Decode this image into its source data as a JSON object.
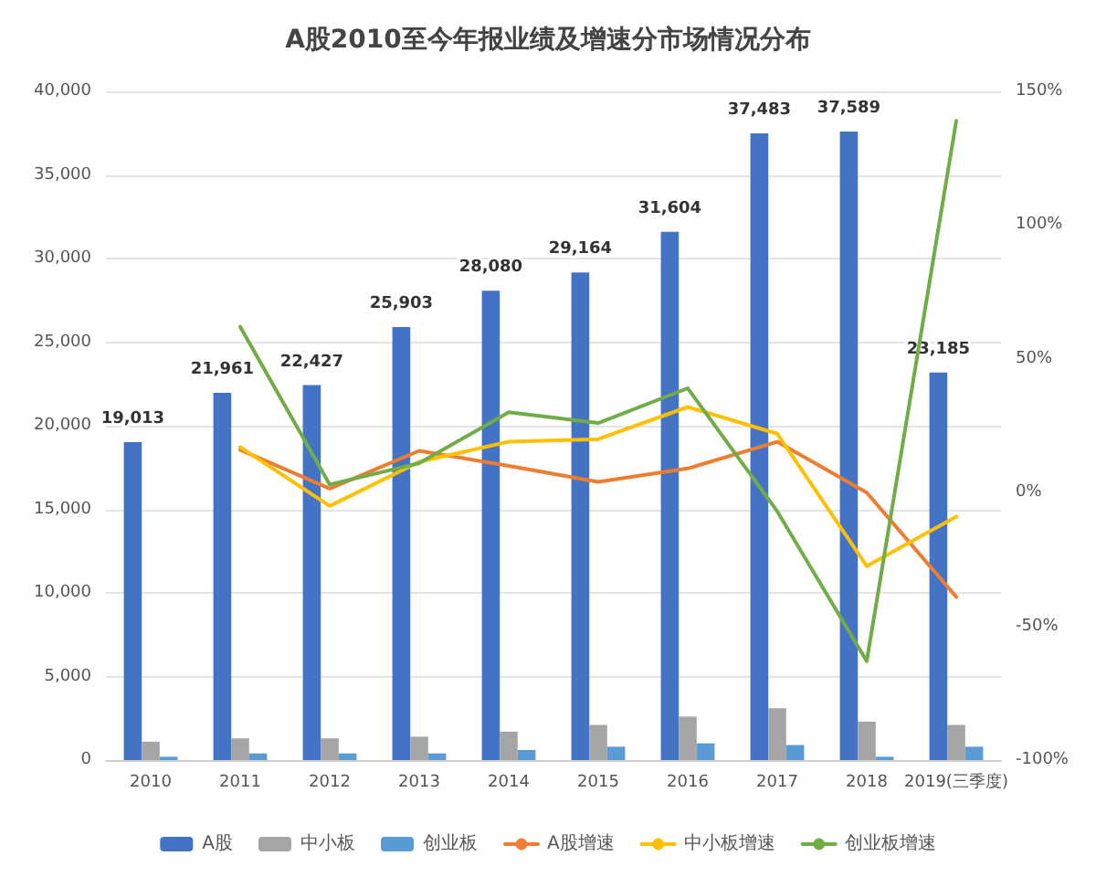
{
  "chart_data": {
    "type": "bar",
    "title": "A股2010至今年报业绩及增速分市场情况分布",
    "categories": [
      "2010",
      "2011",
      "2012",
      "2013",
      "2014",
      "2015",
      "2016",
      "2017",
      "2018",
      "2019(三季度)"
    ],
    "series": [
      {
        "name": "A股",
        "color": "#4472c4",
        "values": [
          19013,
          21961,
          22427,
          25903,
          28080,
          29164,
          31604,
          37483,
          37589,
          23185
        ],
        "value_labels": [
          "19,013",
          "21,961",
          "22,427",
          "25,903",
          "28,080",
          "29,164",
          "31,604",
          "37,483",
          "37,589",
          "23,185"
        ]
      },
      {
        "name": "中小板",
        "color": "#a5a5a5",
        "values": [
          1100,
          1300,
          1300,
          1400,
          1700,
          2100,
          2600,
          3100,
          2300,
          2100
        ]
      },
      {
        "name": "创业板",
        "color": "#5b9bd5",
        "values": [
          200,
          400,
          400,
          400,
          600,
          800,
          1000,
          900,
          200,
          800
        ]
      },
      {
        "name": "A股增速",
        "type": "line",
        "axis": "y2",
        "color": "#ed7d31",
        "values": [
          null,
          16,
          1.5,
          15.6,
          10,
          4,
          9,
          19,
          0,
          -39
        ]
      },
      {
        "name": "中小板增速",
        "type": "line",
        "axis": "y2",
        "color": "#ffc000",
        "values": [
          null,
          17,
          -5,
          11.5,
          19,
          20,
          32,
          22,
          -27.5,
          -9
        ]
      },
      {
        "name": "创业板增速",
        "type": "line",
        "axis": "y2",
        "color": "#70ad47",
        "values": [
          null,
          62,
          3,
          11,
          30,
          26,
          39,
          -7,
          -63,
          139
        ]
      }
    ],
    "ylim": [
      0,
      40000
    ],
    "yticks": [
      {
        "value": 0,
        "label": "0"
      },
      {
        "value": 5000,
        "label": "5,000"
      },
      {
        "value": 10000,
        "label": "10,000"
      },
      {
        "value": 15000,
        "label": "15,000"
      },
      {
        "value": 20000,
        "label": "20,000"
      },
      {
        "value": 25000,
        "label": "25,000"
      },
      {
        "value": 30000,
        "label": "30,000"
      },
      {
        "value": 35000,
        "label": "35,000"
      },
      {
        "value": 40000,
        "label": "40,000"
      }
    ],
    "y2lim": [
      -100,
      150
    ],
    "y2ticks": [
      {
        "value": -100,
        "label": "-100%"
      },
      {
        "value": -50,
        "label": "-50%"
      },
      {
        "value": 0,
        "label": "0%"
      },
      {
        "value": 50,
        "label": "50%"
      },
      {
        "value": 100,
        "label": "100%"
      },
      {
        "value": 150,
        "label": "150%"
      }
    ],
    "grid": "y",
    "legend": "bottom",
    "marker": "none",
    "line_style": "solid"
  }
}
